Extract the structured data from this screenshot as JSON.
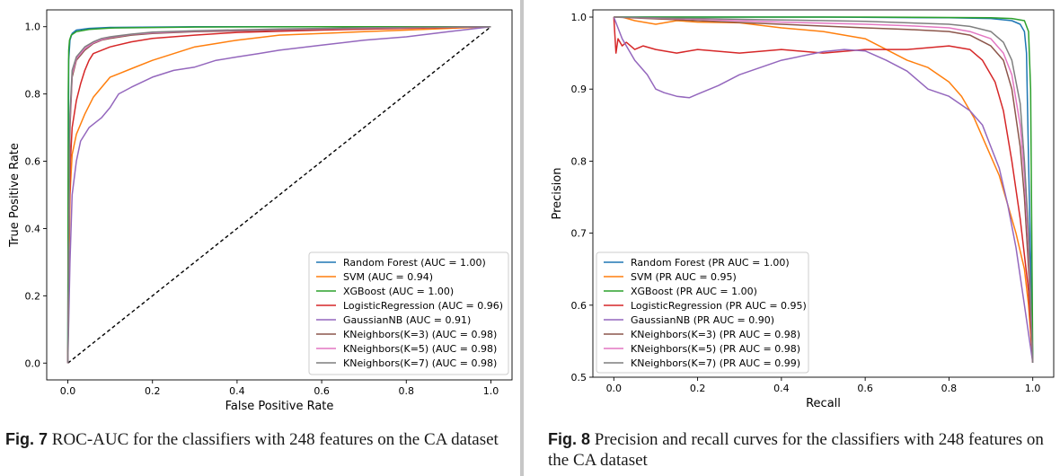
{
  "captions": {
    "fig7": {
      "label": "Fig. 7",
      "text": "ROC-AUC for the classifiers with 248 features on the CA dataset"
    },
    "fig8": {
      "label": "Fig. 8",
      "text": "Precision and recall curves for the classifiers with 248 features on the CA dataset"
    }
  },
  "chart_data": [
    {
      "type": "line",
      "title": "",
      "xlabel": "False Positive Rate",
      "ylabel": "True Positive Rate",
      "xlim": [
        -0.05,
        1.05
      ],
      "ylim": [
        -0.05,
        1.05
      ],
      "xticks": [
        "0.0",
        "0.2",
        "0.4",
        "0.6",
        "0.8",
        "1.0"
      ],
      "yticks": [
        "0.0",
        "0.2",
        "0.4",
        "0.6",
        "0.8",
        "1.0"
      ],
      "xtick_values": [
        0,
        0.2,
        0.4,
        0.6,
        0.8,
        1.0
      ],
      "ytick_values": [
        0,
        0.2,
        0.4,
        0.6,
        0.8,
        1.0
      ],
      "grid": false,
      "legend_position": "lower-right",
      "reference_line": {
        "style": "dashed",
        "color": "#000000",
        "x": [
          0,
          1
        ],
        "y": [
          0,
          1
        ]
      },
      "series": [
        {
          "name": "Random Forest (AUC = 1.00)",
          "color": "#1f77b4",
          "x": [
            0,
            0.002,
            0.005,
            0.01,
            0.02,
            0.05,
            0.1,
            0.3,
            0.6,
            1.0
          ],
          "y": [
            0,
            0.9,
            0.96,
            0.98,
            0.99,
            0.995,
            0.998,
            1.0,
            1.0,
            1.0
          ]
        },
        {
          "name": "SVM (AUC = 0.94)",
          "color": "#ff7f0e",
          "x": [
            0,
            0.005,
            0.01,
            0.02,
            0.04,
            0.06,
            0.08,
            0.1,
            0.12,
            0.15,
            0.2,
            0.25,
            0.3,
            0.35,
            0.4,
            0.5,
            0.6,
            0.7,
            0.8,
            0.9,
            1.0
          ],
          "y": [
            0,
            0.5,
            0.62,
            0.68,
            0.74,
            0.79,
            0.82,
            0.85,
            0.86,
            0.875,
            0.9,
            0.92,
            0.94,
            0.95,
            0.96,
            0.975,
            0.98,
            0.985,
            0.99,
            0.995,
            1.0
          ]
        },
        {
          "name": "XGBoost (AUC = 1.00)",
          "color": "#2ca02c",
          "x": [
            0,
            0.001,
            0.002,
            0.004,
            0.008,
            0.02,
            0.05,
            0.1,
            0.3,
            0.6,
            1.0
          ],
          "y": [
            0,
            0.8,
            0.93,
            0.96,
            0.975,
            0.985,
            0.992,
            0.996,
            0.999,
            1.0,
            1.0
          ]
        },
        {
          "name": "LogisticRegression (AUC = 0.96)",
          "color": "#d62728",
          "x": [
            0,
            0.003,
            0.006,
            0.01,
            0.02,
            0.03,
            0.04,
            0.05,
            0.06,
            0.08,
            0.1,
            0.15,
            0.2,
            0.3,
            0.4,
            0.6,
            0.8,
            1.0
          ],
          "y": [
            0,
            0.4,
            0.6,
            0.7,
            0.78,
            0.83,
            0.87,
            0.9,
            0.92,
            0.93,
            0.94,
            0.955,
            0.965,
            0.975,
            0.983,
            0.99,
            0.995,
            1.0
          ]
        },
        {
          "name": "GaussianNB (AUC = 0.91)",
          "color": "#9467bd",
          "x": [
            0,
            0.005,
            0.01,
            0.02,
            0.03,
            0.05,
            0.08,
            0.1,
            0.12,
            0.15,
            0.2,
            0.25,
            0.3,
            0.35,
            0.4,
            0.45,
            0.5,
            0.6,
            0.7,
            0.8,
            0.9,
            1.0
          ],
          "y": [
            0,
            0.3,
            0.5,
            0.6,
            0.66,
            0.7,
            0.73,
            0.76,
            0.8,
            0.82,
            0.85,
            0.87,
            0.88,
            0.9,
            0.91,
            0.92,
            0.93,
            0.945,
            0.96,
            0.97,
            0.985,
            1.0
          ]
        },
        {
          "name": "KNeighbors(K=3) (AUC = 0.98)",
          "color": "#8c564b",
          "x": [
            0,
            0.005,
            0.01,
            0.02,
            0.04,
            0.06,
            0.08,
            0.1,
            0.15,
            0.2,
            0.3,
            0.5,
            0.7,
            1.0
          ],
          "y": [
            0,
            0.7,
            0.85,
            0.9,
            0.93,
            0.95,
            0.96,
            0.965,
            0.975,
            0.98,
            0.985,
            0.99,
            0.995,
            1.0
          ]
        },
        {
          "name": "KNeighbors(K=5) (AUC = 0.98)",
          "color": "#e377c2",
          "x": [
            0,
            0.005,
            0.01,
            0.02,
            0.04,
            0.06,
            0.08,
            0.1,
            0.15,
            0.2,
            0.3,
            0.5,
            0.7,
            1.0
          ],
          "y": [
            0,
            0.72,
            0.86,
            0.905,
            0.935,
            0.952,
            0.962,
            0.968,
            0.977,
            0.982,
            0.987,
            0.992,
            0.996,
            1.0
          ]
        },
        {
          "name": "KNeighbors(K=7) (AUC = 0.98)",
          "color": "#7f7f7f",
          "x": [
            0,
            0.005,
            0.01,
            0.02,
            0.04,
            0.06,
            0.08,
            0.1,
            0.15,
            0.2,
            0.3,
            0.5,
            0.7,
            1.0
          ],
          "y": [
            0,
            0.74,
            0.87,
            0.91,
            0.94,
            0.955,
            0.965,
            0.97,
            0.978,
            0.984,
            0.988,
            0.993,
            0.997,
            1.0
          ]
        }
      ]
    },
    {
      "type": "line",
      "title": "",
      "xlabel": "Recall",
      "ylabel": "Precision",
      "xlim": [
        -0.05,
        1.05
      ],
      "ylim": [
        0.5,
        1.01
      ],
      "xticks": [
        "0.0",
        "0.2",
        "0.4",
        "0.6",
        "0.8",
        "1.0"
      ],
      "yticks": [
        "0.5",
        "0.6",
        "0.7",
        "0.8",
        "0.9",
        "1.0"
      ],
      "xtick_values": [
        0,
        0.2,
        0.4,
        0.6,
        0.8,
        1.0
      ],
      "ytick_values": [
        0.5,
        0.6,
        0.7,
        0.8,
        0.9,
        1.0
      ],
      "grid": false,
      "legend_position": "lower-left",
      "series": [
        {
          "name": "Random Forest (PR AUC = 1.00)",
          "color": "#1f77b4",
          "x": [
            0,
            0.2,
            0.5,
            0.8,
            0.9,
            0.95,
            0.97,
            0.98,
            0.985,
            0.99,
            1.0
          ],
          "y": [
            1.0,
            1.0,
            1.0,
            0.999,
            0.998,
            0.995,
            0.99,
            0.98,
            0.95,
            0.8,
            0.52
          ]
        },
        {
          "name": "SVM (PR AUC = 0.95)",
          "color": "#ff7f0e",
          "x": [
            0,
            0.02,
            0.05,
            0.1,
            0.15,
            0.2,
            0.3,
            0.4,
            0.5,
            0.6,
            0.65,
            0.7,
            0.75,
            0.8,
            0.83,
            0.86,
            0.89,
            0.92,
            0.94,
            0.96,
            0.98,
            0.99,
            1.0
          ],
          "y": [
            1.0,
            1.0,
            0.995,
            0.99,
            0.995,
            0.993,
            0.992,
            0.985,
            0.98,
            0.97,
            0.955,
            0.94,
            0.93,
            0.91,
            0.89,
            0.86,
            0.82,
            0.78,
            0.74,
            0.7,
            0.65,
            0.6,
            0.52
          ]
        },
        {
          "name": "XGBoost (PR AUC = 1.00)",
          "color": "#2ca02c",
          "x": [
            0,
            0.3,
            0.6,
            0.9,
            0.95,
            0.98,
            0.99,
            0.995,
            1.0
          ],
          "y": [
            1.0,
            1.0,
            1.0,
            0.999,
            0.998,
            0.995,
            0.98,
            0.9,
            0.52
          ]
        },
        {
          "name": "LogisticRegression (PR AUC = 0.95)",
          "color": "#d62728",
          "x": [
            0,
            0.005,
            0.01,
            0.02,
            0.03,
            0.05,
            0.07,
            0.1,
            0.15,
            0.2,
            0.3,
            0.4,
            0.5,
            0.6,
            0.7,
            0.8,
            0.85,
            0.88,
            0.91,
            0.93,
            0.95,
            0.97,
            0.99,
            1.0
          ],
          "y": [
            1.0,
            0.95,
            0.97,
            0.96,
            0.965,
            0.955,
            0.96,
            0.955,
            0.95,
            0.955,
            0.95,
            0.955,
            0.95,
            0.955,
            0.955,
            0.96,
            0.955,
            0.94,
            0.91,
            0.87,
            0.8,
            0.72,
            0.62,
            0.52
          ]
        },
        {
          "name": "GaussianNB (PR AUC = 0.90)",
          "color": "#9467bd",
          "x": [
            0,
            0.02,
            0.05,
            0.08,
            0.1,
            0.12,
            0.15,
            0.18,
            0.2,
            0.25,
            0.3,
            0.4,
            0.5,
            0.55,
            0.6,
            0.65,
            0.7,
            0.75,
            0.8,
            0.85,
            0.88,
            0.9,
            0.92,
            0.94,
            0.96,
            0.98,
            1.0
          ],
          "y": [
            1.0,
            0.97,
            0.94,
            0.92,
            0.9,
            0.895,
            0.89,
            0.888,
            0.893,
            0.905,
            0.92,
            0.94,
            0.952,
            0.955,
            0.953,
            0.94,
            0.925,
            0.9,
            0.89,
            0.87,
            0.85,
            0.82,
            0.79,
            0.74,
            0.68,
            0.6,
            0.52
          ]
        },
        {
          "name": "KNeighbors(K=3) (PR AUC = 0.98)",
          "color": "#8c564b",
          "x": [
            0,
            0.2,
            0.4,
            0.6,
            0.7,
            0.8,
            0.85,
            0.9,
            0.93,
            0.95,
            0.97,
            0.98,
            0.99,
            1.0
          ],
          "y": [
            1.0,
            0.995,
            0.99,
            0.985,
            0.983,
            0.98,
            0.975,
            0.96,
            0.94,
            0.9,
            0.82,
            0.75,
            0.65,
            0.52
          ]
        },
        {
          "name": "KNeighbors(K=5) (PR AUC = 0.98)",
          "color": "#e377c2",
          "x": [
            0,
            0.2,
            0.4,
            0.6,
            0.7,
            0.8,
            0.85,
            0.9,
            0.93,
            0.95,
            0.97,
            0.98,
            0.99,
            1.0
          ],
          "y": [
            1.0,
            0.997,
            0.993,
            0.99,
            0.988,
            0.985,
            0.98,
            0.97,
            0.95,
            0.92,
            0.85,
            0.78,
            0.68,
            0.52
          ]
        },
        {
          "name": "KNeighbors(K=7) (PR AUC = 0.99)",
          "color": "#7f7f7f",
          "x": [
            0,
            0.2,
            0.4,
            0.6,
            0.7,
            0.8,
            0.85,
            0.9,
            0.93,
            0.95,
            0.97,
            0.98,
            0.99,
            1.0
          ],
          "y": [
            1.0,
            0.998,
            0.996,
            0.994,
            0.992,
            0.99,
            0.987,
            0.98,
            0.965,
            0.94,
            0.88,
            0.8,
            0.7,
            0.52
          ]
        }
      ]
    }
  ]
}
